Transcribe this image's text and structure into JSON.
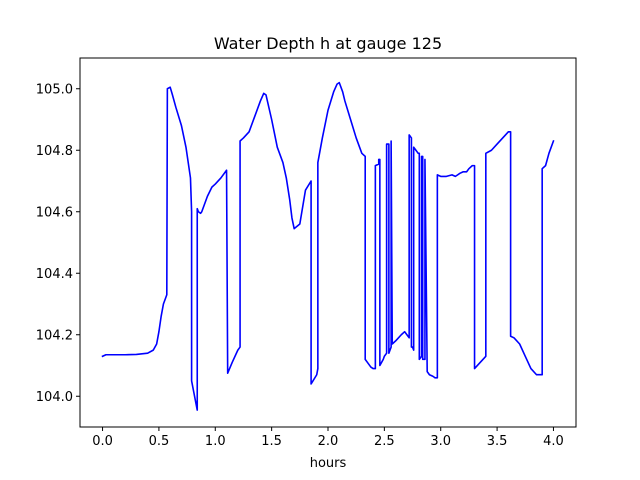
{
  "chart_data": {
    "type": "line",
    "title": "Water Depth h at gauge 125",
    "xlabel": "hours",
    "ylabel": "",
    "xlim": [
      -0.2,
      4.2
    ],
    "ylim": [
      103.9,
      105.1
    ],
    "xticks": [
      0.0,
      0.5,
      1.0,
      1.5,
      2.0,
      2.5,
      3.0,
      3.5,
      4.0
    ],
    "xtick_labels": [
      "0.0",
      "0.5",
      "1.0",
      "1.5",
      "2.0",
      "2.5",
      "3.0",
      "3.5",
      "4.0"
    ],
    "yticks": [
      104.0,
      104.2,
      104.4,
      104.6,
      104.8,
      105.0
    ],
    "ytick_labels": [
      "104.0",
      "104.2",
      "104.4",
      "104.6",
      "104.8",
      "105.0"
    ],
    "grid": false,
    "colors": {
      "line": "#0000ff",
      "axes": "#000000",
      "background": "#ffffff"
    },
    "series": [
      {
        "x": [
          0.0,
          0.03,
          0.1,
          0.2,
          0.3,
          0.4,
          0.45,
          0.48,
          0.5,
          0.52,
          0.54,
          0.56,
          0.57,
          0.575,
          0.6,
          0.62,
          0.65,
          0.7,
          0.74,
          0.78,
          0.79,
          0.79,
          0.84,
          0.84,
          0.85,
          0.87,
          0.88,
          0.9,
          0.93,
          0.97,
          1.0,
          1.05,
          1.1,
          1.11,
          1.11,
          1.15,
          1.2,
          1.22,
          1.22,
          1.25,
          1.3,
          1.35,
          1.4,
          1.43,
          1.45,
          1.5,
          1.55,
          1.6,
          1.63,
          1.66,
          1.68,
          1.7,
          1.75,
          1.8,
          1.85,
          1.85,
          1.9,
          1.91,
          1.91,
          1.95,
          2.0,
          2.05,
          2.08,
          2.1,
          2.13,
          2.15,
          2.2,
          2.25,
          2.3,
          2.33,
          2.33,
          2.35,
          2.38,
          2.4,
          2.42,
          2.42,
          2.45,
          2.45,
          2.46,
          2.46,
          2.49,
          2.5,
          2.52,
          2.52,
          2.54,
          2.54,
          2.55,
          2.56,
          2.56,
          2.57,
          2.6,
          2.65,
          2.68,
          2.7,
          2.72,
          2.72,
          2.74,
          2.74,
          2.75,
          2.76,
          2.76,
          2.78,
          2.8,
          2.81,
          2.81,
          2.83,
          2.83,
          2.84,
          2.84,
          2.86,
          2.86,
          2.88,
          2.9,
          2.93,
          2.95,
          2.97,
          2.97,
          3.0,
          3.05,
          3.1,
          3.13,
          3.15,
          3.17,
          3.2,
          3.23,
          3.25,
          3.28,
          3.3,
          3.3,
          3.35,
          3.4,
          3.4,
          3.45,
          3.5,
          3.55,
          3.6,
          3.62,
          3.62,
          3.65,
          3.7,
          3.75,
          3.8,
          3.85,
          3.88,
          3.9,
          3.9,
          3.93,
          3.96,
          4.0
        ],
        "y": [
          104.13,
          104.135,
          104.135,
          104.135,
          104.136,
          104.14,
          104.15,
          104.17,
          104.21,
          104.26,
          104.3,
          104.32,
          104.33,
          105.0,
          105.005,
          104.98,
          104.94,
          104.88,
          104.81,
          104.71,
          104.6,
          104.05,
          103.955,
          104.61,
          104.6,
          104.595,
          104.6,
          104.62,
          104.65,
          104.68,
          104.69,
          104.71,
          104.735,
          104.08,
          104.075,
          104.11,
          104.15,
          104.16,
          104.83,
          104.84,
          104.86,
          104.91,
          104.96,
          104.985,
          104.98,
          104.9,
          104.81,
          104.76,
          104.71,
          104.64,
          104.58,
          104.545,
          104.56,
          104.67,
          104.7,
          104.04,
          104.07,
          104.09,
          104.76,
          104.84,
          104.93,
          104.99,
          105.015,
          105.02,
          104.99,
          104.96,
          104.9,
          104.84,
          104.79,
          104.78,
          104.12,
          104.11,
          104.095,
          104.09,
          104.09,
          104.75,
          104.755,
          104.77,
          104.77,
          104.1,
          104.12,
          104.13,
          104.14,
          104.82,
          104.82,
          104.14,
          104.15,
          104.16,
          104.83,
          104.17,
          104.18,
          104.2,
          104.21,
          104.2,
          104.19,
          104.85,
          104.84,
          104.16,
          104.16,
          104.15,
          104.81,
          104.8,
          104.79,
          104.79,
          104.12,
          104.13,
          104.78,
          104.78,
          104.12,
          104.12,
          104.77,
          104.08,
          104.07,
          104.065,
          104.06,
          104.06,
          104.72,
          104.715,
          104.715,
          104.72,
          104.715,
          104.72,
          104.725,
          104.73,
          104.73,
          104.74,
          104.75,
          104.75,
          104.09,
          104.11,
          104.13,
          104.79,
          104.8,
          104.82,
          104.84,
          104.86,
          104.86,
          104.195,
          104.19,
          104.17,
          104.13,
          104.09,
          104.07,
          104.07,
          104.07,
          104.74,
          104.75,
          104.79,
          104.83
        ]
      }
    ]
  }
}
